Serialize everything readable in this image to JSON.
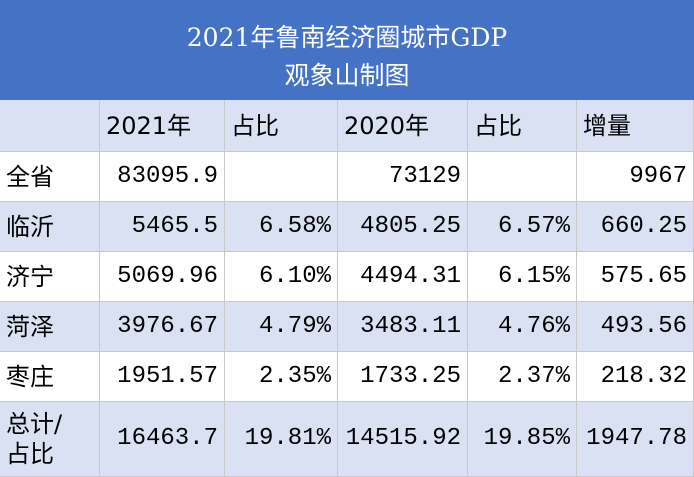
{
  "header": {
    "title": "2021年鲁南经济圈城市GDP",
    "subtitle": "观象山制图"
  },
  "table": {
    "header": {
      "1": "2021年",
      "2": "占比",
      "3": "2020年",
      "4": "占比",
      "5": "增量"
    },
    "rows": [
      {
        "0": "全省",
        "1": "83095.9",
        "3": "73129",
        "5": "9967"
      },
      [
        "临沂",
        "5465.5",
        "6.58%",
        "4805.25",
        "6.57%",
        "660.25"
      ],
      [
        "济宁",
        "5069.96",
        "6.10%",
        "4494.31",
        "6.15%",
        "575.65"
      ],
      [
        "菏泽",
        "3976.67",
        "4.79%",
        "3483.11",
        "4.76%",
        "493.56"
      ],
      [
        "枣庄",
        "1951.57",
        "2.35%",
        "1733.25",
        "2.37%",
        "218.32"
      ],
      [
        "总计/\n占比",
        "16463.7",
        "19.81%",
        "14515.92",
        "19.85%",
        "1947.78"
      ]
    ]
  }
}
